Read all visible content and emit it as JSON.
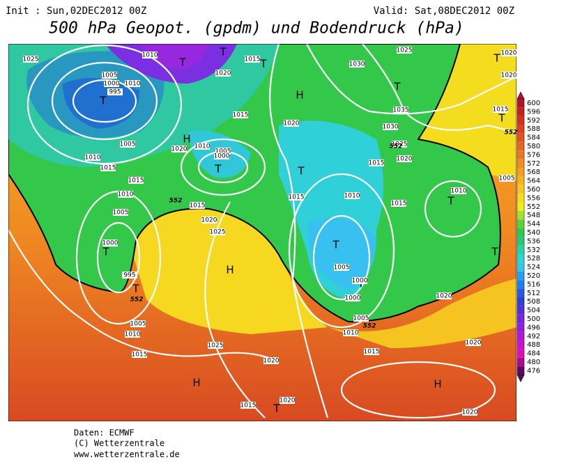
{
  "header": {
    "init": "Init : Sun,02DEC2012 00Z",
    "valid": "Valid: Sat,08DEC2012 00Z",
    "title": "500 hPa Geopot. (gpdm) und Bodendruck (hPa)"
  },
  "colorbar": {
    "levels": [
      600,
      596,
      592,
      588,
      584,
      580,
      576,
      572,
      568,
      564,
      560,
      556,
      552,
      548,
      544,
      540,
      536,
      532,
      528,
      524,
      520,
      516,
      512,
      508,
      504,
      500,
      496,
      492,
      488,
      484,
      480,
      476
    ],
    "colors": [
      "#b4122a",
      "#c8201e",
      "#d43020",
      "#de4020",
      "#e45222",
      "#ea6422",
      "#ee7822",
      "#f28c20",
      "#f6a020",
      "#f8b420",
      "#f8c81e",
      "#f6dc1e",
      "#f0ec1c",
      "#a8e030",
      "#60d038",
      "#30c848",
      "#28c878",
      "#2ad0a8",
      "#2ad8d0",
      "#30c8f0",
      "#28a0f0",
      "#2080e8",
      "#2060d8",
      "#3040d0",
      "#5030d8",
      "#7028e0",
      "#9020e0",
      "#b018d8",
      "#d010d0",
      "#e010b8",
      "#b00890",
      "#600860"
    ]
  },
  "map_labels": {
    "systems": [
      "T",
      "T",
      "T",
      "T",
      "H",
      "T",
      "T",
      "T",
      "H",
      "T",
      "T",
      "T",
      "T",
      "T",
      "H",
      "T",
      "T",
      "T",
      "H",
      "H",
      "T"
    ],
    "isobars": [
      "1010",
      "1005",
      "1000",
      "995",
      "1025",
      "1015",
      "1020",
      "1030",
      "1025",
      "1020",
      "1020",
      "1035",
      "1015",
      "1030",
      "1025",
      "1020",
      "1020",
      "1015",
      "1020",
      "1010",
      "1005",
      "1000",
      "1005",
      "1010",
      "1015",
      "1015",
      "1010",
      "1005",
      "1000",
      "995",
      "1005",
      "1010",
      "1015",
      "1015",
      "1020",
      "1025",
      "1025",
      "1015",
      "1015",
      "1010",
      "1015",
      "1010",
      "1005",
      "1005",
      "1000",
      "1000",
      "1005",
      "1010",
      "1015",
      "1020",
      "1020",
      "1020",
      "1020",
      "1020",
      "1015",
      "1010"
    ],
    "contours": [
      "552",
      "552",
      "552",
      "552",
      "552"
    ]
  },
  "footer": [
    "Daten: ECMWF",
    "(C) Wetterzentrale",
    "www.wetterzentrale.de"
  ]
}
